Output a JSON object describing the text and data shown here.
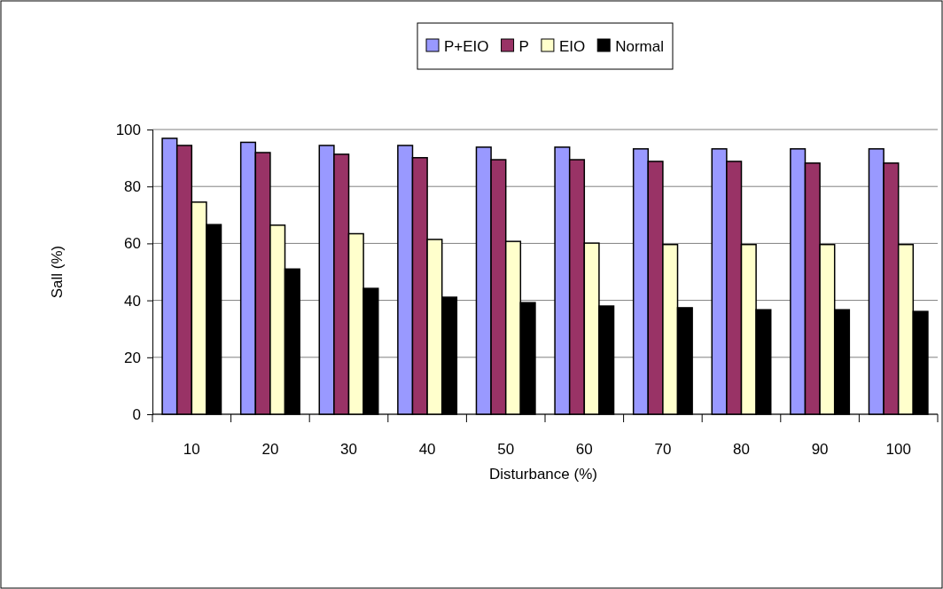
{
  "chart_data": {
    "type": "bar",
    "xlabel": "Disturbance (%)",
    "ylabel": "Sall (%)",
    "categories": [
      "10",
      "20",
      "30",
      "40",
      "50",
      "60",
      "70",
      "80",
      "90",
      "100"
    ],
    "series": [
      {
        "name": "P+EIO",
        "color": "#9999ff",
        "values": [
          96.9,
          95.5,
          94.4,
          94.4,
          93.8,
          93.8,
          93.2,
          93.2,
          93.2,
          93.2
        ]
      },
      {
        "name": "P",
        "color": "#993366",
        "values": [
          94.4,
          91.9,
          91.3,
          90.1,
          89.4,
          89.4,
          88.8,
          88.8,
          88.2,
          88.2
        ]
      },
      {
        "name": "EIO",
        "color": "#ffffcc",
        "values": [
          74.5,
          66.4,
          63.4,
          61.4,
          60.7,
          60.1,
          59.6,
          59.6,
          59.6,
          59.6
        ]
      },
      {
        "name": "Normal",
        "color": "#000000",
        "values": [
          66.6,
          51.0,
          44.2,
          41.1,
          39.2,
          38.0,
          37.4,
          36.7,
          36.7,
          36.1
        ]
      }
    ],
    "ylim": [
      0,
      100
    ],
    "yticks": [
      0,
      20,
      40,
      60,
      80,
      100
    ],
    "grid": "y",
    "legend": "top"
  }
}
